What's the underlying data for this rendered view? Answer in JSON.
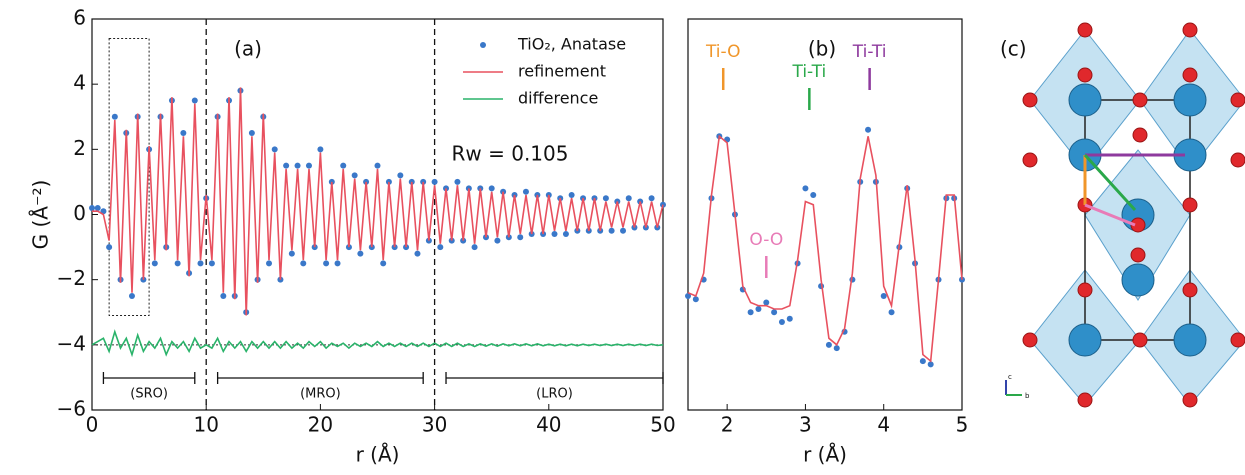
{
  "chart_data": [
    {
      "type": "line",
      "panel": "(a)",
      "xlabel": "r (Å)",
      "ylabel": "G (Å⁻²)",
      "xlim": [
        0,
        50
      ],
      "ylim": [
        -6,
        6
      ],
      "xticks": [
        0,
        10,
        20,
        30,
        40,
        50
      ],
      "yticks": [
        {
          "value": -6,
          "label": "−6"
        },
        {
          "value": -4,
          "label": "−4"
        },
        {
          "value": -2,
          "label": "−2"
        },
        0,
        2,
        4,
        6
      ],
      "legend": "upper right",
      "x": [
        0,
        0.5,
        1,
        1.5,
        2,
        2.5,
        3,
        3.5,
        4,
        4.5,
        5,
        5.5,
        6,
        6.5,
        7,
        7.5,
        8,
        8.5,
        9,
        9.5,
        10,
        10.5,
        11,
        11.5,
        12,
        12.5,
        13,
        13.5,
        14,
        14.5,
        15,
        15.5,
        16,
        16.5,
        17,
        17.5,
        18,
        18.5,
        19,
        19.5,
        20,
        20.5,
        21,
        21.5,
        22,
        22.5,
        23,
        23.5,
        24,
        24.5,
        25,
        25.5,
        26,
        26.5,
        27,
        27.5,
        28,
        28.5,
        29,
        29.5,
        30,
        30.5,
        31,
        31.5,
        32,
        32.5,
        33,
        33.5,
        34,
        34.5,
        35,
        35.5,
        36,
        36.5,
        37,
        37.5,
        38,
        38.5,
        39,
        39.5,
        40,
        40.5,
        41,
        41.5,
        42,
        42.5,
        43,
        43.5,
        44,
        44.5,
        45,
        45.5,
        46,
        46.5,
        47,
        47.5,
        48,
        48.5,
        49,
        49.5,
        50
      ],
      "series": [
        {
          "name": "TiO₂, Anatase",
          "color": "#3a78c9",
          "style": "dots",
          "values": [
            0.2,
            0.2,
            0.1,
            -1.0,
            3.0,
            -2.0,
            2.5,
            -2.5,
            3.0,
            -2.0,
            2.0,
            -1.5,
            3.0,
            -1.0,
            3.5,
            -1.5,
            2.5,
            -1.8,
            3.5,
            -1.5,
            0.5,
            -1.5,
            3.0,
            -2.5,
            3.5,
            -2.5,
            3.8,
            -3.0,
            2.5,
            -2.0,
            3.0,
            -1.5,
            2.0,
            -2.0,
            1.5,
            -1.2,
            1.5,
            -1.5,
            1.5,
            -1.0,
            2.0,
            -1.5,
            1.0,
            -1.5,
            1.5,
            -1.0,
            1.2,
            -1.2,
            1.0,
            -1.0,
            1.5,
            -1.5,
            1.0,
            -1.0,
            1.2,
            -1.0,
            1.0,
            -1.2,
            1.0,
            -0.8,
            1.0,
            -1.0,
            0.8,
            -0.8,
            1.0,
            -0.8,
            0.8,
            -1.0,
            0.8,
            -0.7,
            0.8,
            -0.8,
            0.7,
            -0.7,
            0.6,
            -0.7,
            0.7,
            -0.6,
            0.6,
            -0.6,
            0.6,
            -0.6,
            0.5,
            -0.6,
            0.6,
            -0.5,
            0.5,
            -0.5,
            0.5,
            -0.5,
            0.5,
            -0.5,
            0.4,
            -0.5,
            0.5,
            -0.4,
            0.4,
            -0.4,
            0.5,
            -0.4,
            0.3
          ]
        },
        {
          "name": "refinement",
          "color": "#e8515f",
          "style": "line",
          "values": [
            0.1,
            0.1,
            0.0,
            -0.8,
            2.9,
            -2.1,
            2.6,
            -2.4,
            3.1,
            -2.0,
            2.1,
            -1.4,
            3.1,
            -1.1,
            3.6,
            -1.4,
            2.4,
            -1.9,
            3.4,
            -1.4,
            0.6,
            -1.4,
            3.1,
            -2.4,
            3.6,
            -2.6,
            3.9,
            -3.1,
            2.4,
            -2.1,
            3.1,
            -1.4,
            1.9,
            -2.0,
            1.4,
            -1.1,
            1.4,
            -1.4,
            1.4,
            -1.0,
            1.9,
            -1.4,
            1.0,
            -1.4,
            1.4,
            -1.0,
            1.1,
            -1.1,
            1.0,
            -1.0,
            1.4,
            -1.4,
            1.0,
            -1.0,
            1.1,
            -1.0,
            1.0,
            -1.1,
            1.0,
            -0.8,
            0.9,
            -0.9,
            0.8,
            -0.8,
            0.9,
            -0.8,
            0.8,
            -0.9,
            0.8,
            -0.7,
            0.7,
            -0.7,
            0.7,
            -0.7,
            0.6,
            -0.6,
            0.6,
            -0.6,
            0.6,
            -0.6,
            0.6,
            -0.5,
            0.5,
            -0.5,
            0.5,
            -0.5,
            0.5,
            -0.5,
            0.5,
            -0.5,
            0.4,
            -0.4,
            0.4,
            -0.4,
            0.4,
            -0.4,
            0.4,
            -0.4,
            0.4,
            -0.4,
            0.3
          ]
        },
        {
          "name": "difference",
          "color": "#2ab36a",
          "style": "line",
          "values": [
            -4.0,
            -3.9,
            -3.8,
            -4.2,
            -3.6,
            -4.1,
            -3.8,
            -4.3,
            -3.7,
            -4.2,
            -3.9,
            -4.1,
            -3.8,
            -4.3,
            -3.9,
            -4.1,
            -3.9,
            -4.2,
            -3.8,
            -4.1,
            -4.0,
            -4.1,
            -3.8,
            -4.2,
            -3.9,
            -4.1,
            -3.9,
            -4.2,
            -3.9,
            -4.1,
            -3.9,
            -4.1,
            -3.9,
            -4.1,
            -3.9,
            -4.1,
            -3.95,
            -4.1,
            -3.9,
            -4.05,
            -3.9,
            -4.1,
            -3.95,
            -4.05,
            -3.95,
            -4.1,
            -3.95,
            -4.05,
            -3.95,
            -4.05,
            -3.9,
            -4.05,
            -3.95,
            -4.05,
            -3.95,
            -4.05,
            -3.95,
            -4.05,
            -3.95,
            -4.05,
            -3.95,
            -4.05,
            -3.95,
            -4.05,
            -3.95,
            -4.05,
            -3.97,
            -4.05,
            -3.97,
            -4.04,
            -3.97,
            -4.04,
            -3.97,
            -4.03,
            -3.97,
            -4.03,
            -3.97,
            -4.03,
            -3.97,
            -4.03,
            -3.98,
            -4.03,
            -3.98,
            -4.03,
            -3.98,
            -4.03,
            -3.98,
            -4.02,
            -3.98,
            -4.02,
            -3.98,
            -4.02,
            -3.98,
            -4.02,
            -3.98,
            -4.02,
            -3.98,
            -4.02,
            -3.98,
            -4.02,
            -4.0
          ]
        }
      ],
      "annotations": [
        "(a)",
        "Rw = 0.105"
      ],
      "vlines": [
        10,
        30
      ],
      "hline": -4,
      "zoom_box": {
        "xlim": [
          1.5,
          5
        ],
        "ylim": [
          -3.1,
          5.4
        ]
      },
      "regions": [
        {
          "label": "(SRO)",
          "range": [
            1,
            9
          ]
        },
        {
          "label": "(MRO)",
          "range": [
            11,
            29
          ]
        },
        {
          "label": "(LRO)",
          "range": [
            31,
            50
          ]
        }
      ]
    },
    {
      "type": "line",
      "panel": "(b)",
      "xlabel": "r (Å)",
      "xlim": [
        1.5,
        5
      ],
      "ylim": [
        -6,
        6
      ],
      "xticks": [
        2,
        3,
        4,
        5
      ],
      "x": [
        1.5,
        1.6,
        1.7,
        1.8,
        1.9,
        2.0,
        2.1,
        2.2,
        2.3,
        2.4,
        2.5,
        2.6,
        2.7,
        2.8,
        2.9,
        3.0,
        3.1,
        3.2,
        3.3,
        3.4,
        3.5,
        3.6,
        3.7,
        3.8,
        3.9,
        4.0,
        4.1,
        4.2,
        4.3,
        4.4,
        4.5,
        4.6,
        4.7,
        4.8,
        4.9,
        5.0
      ],
      "series": [
        {
          "name": "TiO₂, Anatase",
          "color": "#3a78c9",
          "style": "dots",
          "values": [
            -2.5,
            -2.6,
            -2.0,
            0.5,
            2.4,
            2.3,
            0.0,
            -2.3,
            -3.0,
            -2.9,
            -2.7,
            -3.0,
            -3.3,
            -3.2,
            -1.5,
            0.8,
            0.6,
            -2.2,
            -4.0,
            -4.1,
            -3.6,
            -2.0,
            1.0,
            2.6,
            1.0,
            -2.5,
            -3.0,
            -1.0,
            0.8,
            -1.5,
            -4.5,
            -4.6,
            -2.0,
            0.5,
            0.5,
            -2.0
          ]
        },
        {
          "name": "refinement",
          "color": "#e8515f",
          "style": "line",
          "values": [
            -2.4,
            -2.5,
            -1.8,
            0.6,
            2.4,
            2.2,
            0.0,
            -2.2,
            -2.7,
            -2.8,
            -2.8,
            -2.9,
            -2.9,
            -2.8,
            -1.4,
            0.4,
            0.3,
            -2.0,
            -3.8,
            -4.0,
            -3.5,
            -1.8,
            1.1,
            2.4,
            1.2,
            -2.2,
            -2.8,
            -0.9,
            0.9,
            -1.4,
            -4.3,
            -4.5,
            -2.0,
            0.6,
            0.6,
            -2.0
          ]
        }
      ],
      "labels": [
        {
          "text": "Ti-O",
          "x": 1.95,
          "color": "#f0962a"
        },
        {
          "text": "O-O",
          "x": 2.5,
          "color": "#e87bb7"
        },
        {
          "text": "Ti-Ti",
          "x": 3.05,
          "color": "#2aa84a"
        },
        {
          "text": "Ti-Ti",
          "x": 3.82,
          "color": "#8e3a9e"
        }
      ]
    }
  ],
  "panel_c": {
    "label": "(c)",
    "axes": [
      "c",
      "b"
    ]
  }
}
